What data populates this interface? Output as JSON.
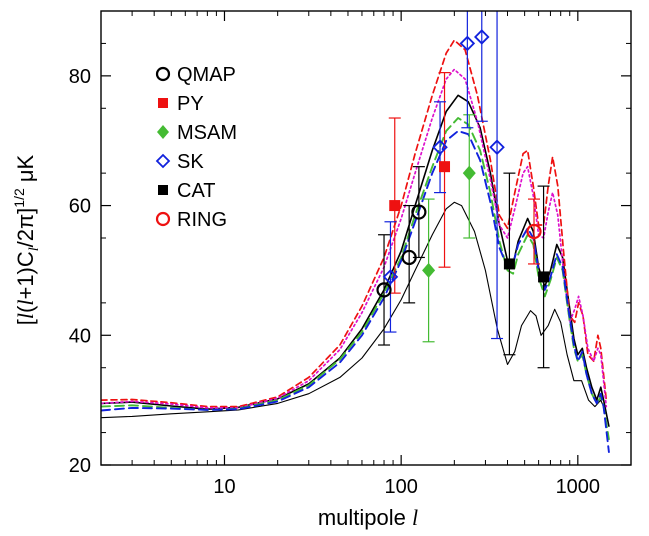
{
  "chart_data": {
    "type": "scatter",
    "xlabel": "multipole",
    "xlabel_symbol": "l",
    "ylabel_unit": "μK",
    "xscale": "log",
    "xlim": [
      2,
      2000
    ],
    "ylim": [
      20,
      90
    ],
    "x_ticks": [
      10,
      100,
      1000
    ],
    "x_tick_labels": [
      "10",
      "100",
      "1000"
    ],
    "y_ticks": [
      20,
      40,
      60,
      80
    ],
    "y_tick_labels": [
      "20",
      "40",
      "60",
      "80"
    ],
    "legend_position": "upper-left",
    "series": [
      {
        "name": "QMAP",
        "color": "#000000",
        "marker": "open-circle",
        "points": [
          {
            "x": 80,
            "y": 47,
            "ylo": 38.5,
            "yhi": 55.5
          },
          {
            "x": 111,
            "y": 52,
            "ylo": 45,
            "yhi": 60
          },
          {
            "x": 126,
            "y": 59,
            "ylo": 52,
            "yhi": 66
          }
        ]
      },
      {
        "name": "PY",
        "color": "#ee1111",
        "marker": "filled-square",
        "points": [
          {
            "x": 92,
            "y": 60,
            "ylo": 46.5,
            "yhi": 73.5
          },
          {
            "x": 176,
            "y": 66,
            "ylo": 50.5,
            "yhi": 80.5
          }
        ]
      },
      {
        "name": "MSAM",
        "color": "#44bb33",
        "marker": "filled-diamond",
        "points": [
          {
            "x": 143,
            "y": 50,
            "ylo": 39,
            "yhi": 61
          },
          {
            "x": 243,
            "y": 65,
            "ylo": 55,
            "yhi": 74
          }
        ]
      },
      {
        "name": "SK",
        "color": "#1122dd",
        "marker": "open-diamond",
        "points": [
          {
            "x": 87,
            "y": 49,
            "ylo": 40.5,
            "yhi": 57.5
          },
          {
            "x": 166,
            "y": 69,
            "ylo": 62,
            "yhi": 76
          },
          {
            "x": 237,
            "y": 85,
            "ylo": 72,
            "yhi": 90
          },
          {
            "x": 286,
            "y": 86,
            "ylo": 73,
            "yhi": 90
          },
          {
            "x": 349,
            "y": 69,
            "ylo": 39.5,
            "yhi": 90
          }
        ]
      },
      {
        "name": "CAT",
        "color": "#000000",
        "marker": "filled-square",
        "points": [
          {
            "x": 410,
            "y": 51,
            "ylo": 37,
            "yhi": 65
          },
          {
            "x": 640,
            "y": 49,
            "ylo": 35,
            "yhi": 63
          }
        ]
      },
      {
        "name": "RING",
        "color": "#ee1111",
        "marker": "open-circle",
        "points": [
          {
            "x": 565,
            "y": 56,
            "ylo": 51,
            "yhi": 61
          }
        ]
      }
    ],
    "curves": [
      {
        "color": "#000000",
        "dash": "",
        "width": 1.6,
        "points": [
          [
            2,
            29.5
          ],
          [
            3,
            29.7
          ],
          [
            5,
            29.1
          ],
          [
            8,
            28.6
          ],
          [
            12,
            28.9
          ],
          [
            20,
            30.2
          ],
          [
            30,
            32.5
          ],
          [
            45,
            36.5
          ],
          [
            60,
            41
          ],
          [
            80,
            47
          ],
          [
            100,
            53
          ],
          [
            120,
            60
          ],
          [
            150,
            68.5
          ],
          [
            180,
            74.5
          ],
          [
            210,
            77
          ],
          [
            240,
            76
          ],
          [
            280,
            72
          ],
          [
            320,
            65
          ],
          [
            360,
            57
          ],
          [
            400,
            51.5
          ],
          [
            430,
            51
          ],
          [
            460,
            54.5
          ],
          [
            520,
            58
          ],
          [
            560,
            56
          ],
          [
            600,
            50.5
          ],
          [
            650,
            47.5
          ],
          [
            700,
            50
          ],
          [
            760,
            54
          ],
          [
            820,
            52
          ],
          [
            880,
            46
          ],
          [
            950,
            39.5
          ],
          [
            1000,
            37
          ],
          [
            1060,
            38
          ],
          [
            1120,
            35
          ],
          [
            1200,
            32
          ],
          [
            1280,
            30
          ],
          [
            1350,
            32
          ],
          [
            1400,
            30
          ],
          [
            1500,
            26
          ]
        ]
      },
      {
        "color": "#000000",
        "dash": "",
        "width": 1.1,
        "points": [
          [
            2,
            27.3
          ],
          [
            3,
            27.5
          ],
          [
            5,
            27.9
          ],
          [
            8,
            28.2
          ],
          [
            12,
            28.5
          ],
          [
            20,
            29.5
          ],
          [
            30,
            31
          ],
          [
            45,
            33.5
          ],
          [
            60,
            36.5
          ],
          [
            80,
            41
          ],
          [
            100,
            45.5
          ],
          [
            120,
            50
          ],
          [
            150,
            55.5
          ],
          [
            180,
            59.5
          ],
          [
            200,
            60.5
          ],
          [
            220,
            60
          ],
          [
            260,
            56
          ],
          [
            300,
            50
          ],
          [
            350,
            41
          ],
          [
            400,
            35.5
          ],
          [
            440,
            37.5
          ],
          [
            480,
            41.5
          ],
          [
            540,
            43.8
          ],
          [
            580,
            43
          ],
          [
            620,
            40
          ],
          [
            680,
            41.5
          ],
          [
            740,
            44
          ],
          [
            800,
            42
          ],
          [
            870,
            37
          ],
          [
            950,
            33
          ],
          [
            1050,
            33
          ],
          [
            1150,
            30
          ],
          [
            1250,
            29
          ],
          [
            1350,
            30
          ],
          [
            1450,
            28
          ]
        ]
      },
      {
        "color": "#ee1111",
        "dash": "6,4",
        "width": 1.7,
        "points": [
          [
            2,
            30
          ],
          [
            3,
            30.1
          ],
          [
            5,
            29.6
          ],
          [
            8,
            29
          ],
          [
            12,
            29
          ],
          [
            20,
            30.5
          ],
          [
            30,
            33.5
          ],
          [
            45,
            38.5
          ],
          [
            60,
            44.5
          ],
          [
            80,
            52
          ],
          [
            100,
            60
          ],
          [
            120,
            68
          ],
          [
            150,
            77
          ],
          [
            180,
            83.5
          ],
          [
            200,
            85.5
          ],
          [
            230,
            84
          ],
          [
            270,
            77
          ],
          [
            320,
            67
          ],
          [
            360,
            58.5
          ],
          [
            400,
            56.5
          ],
          [
            440,
            62
          ],
          [
            490,
            68
          ],
          [
            520,
            68.5
          ],
          [
            560,
            63
          ],
          [
            600,
            57
          ],
          [
            640,
            57
          ],
          [
            680,
            63
          ],
          [
            720,
            67.5
          ],
          [
            770,
            63
          ],
          [
            830,
            53
          ],
          [
            900,
            43
          ],
          [
            960,
            42
          ],
          [
            1010,
            45
          ],
          [
            1070,
            43
          ],
          [
            1140,
            37
          ],
          [
            1230,
            36
          ],
          [
            1300,
            40
          ],
          [
            1350,
            38
          ],
          [
            1450,
            30
          ]
        ]
      },
      {
        "color": "#dd11cc",
        "dash": "2,3",
        "width": 1.7,
        "points": [
          [
            2,
            29.5
          ],
          [
            3,
            29.8
          ],
          [
            5,
            29.4
          ],
          [
            8,
            28.8
          ],
          [
            12,
            28.8
          ],
          [
            20,
            30.3
          ],
          [
            30,
            33
          ],
          [
            45,
            37.8
          ],
          [
            60,
            43.5
          ],
          [
            80,
            50.5
          ],
          [
            100,
            58
          ],
          [
            120,
            65
          ],
          [
            150,
            73.5
          ],
          [
            180,
            79.5
          ],
          [
            200,
            81
          ],
          [
            230,
            79.5
          ],
          [
            270,
            73
          ],
          [
            320,
            64
          ],
          [
            360,
            57
          ],
          [
            400,
            55
          ],
          [
            440,
            59.5
          ],
          [
            490,
            65
          ],
          [
            520,
            66
          ],
          [
            560,
            61.5
          ],
          [
            600,
            55.5
          ],
          [
            640,
            55
          ],
          [
            680,
            59
          ],
          [
            720,
            62
          ],
          [
            770,
            58.5
          ],
          [
            830,
            50
          ],
          [
            900,
            42
          ],
          [
            960,
            44
          ],
          [
            1010,
            46
          ],
          [
            1070,
            43
          ],
          [
            1140,
            38
          ],
          [
            1230,
            36
          ],
          [
            1300,
            38
          ],
          [
            1350,
            37
          ],
          [
            1450,
            29
          ]
        ]
      },
      {
        "color": "#44bb33",
        "dash": "9,5",
        "width": 1.9,
        "points": [
          [
            2,
            29
          ],
          [
            3,
            29.2
          ],
          [
            5,
            28.8
          ],
          [
            8,
            28.5
          ],
          [
            12,
            28.7
          ],
          [
            20,
            30
          ],
          [
            30,
            32.3
          ],
          [
            45,
            36.3
          ],
          [
            60,
            40.5
          ],
          [
            80,
            46.5
          ],
          [
            100,
            52
          ],
          [
            120,
            58.5
          ],
          [
            150,
            66
          ],
          [
            180,
            71.5
          ],
          [
            210,
            73.5
          ],
          [
            240,
            72.5
          ],
          [
            280,
            68.5
          ],
          [
            320,
            62
          ],
          [
            360,
            54.5
          ],
          [
            400,
            50
          ],
          [
            430,
            49.5
          ],
          [
            460,
            52.5
          ],
          [
            520,
            55.5
          ],
          [
            560,
            54
          ],
          [
            600,
            49
          ],
          [
            650,
            46
          ],
          [
            700,
            48.5
          ],
          [
            760,
            52
          ],
          [
            820,
            50
          ],
          [
            880,
            44
          ],
          [
            950,
            38
          ],
          [
            1000,
            36
          ],
          [
            1060,
            37
          ],
          [
            1120,
            34
          ],
          [
            1200,
            31
          ],
          [
            1280,
            29.5
          ],
          [
            1350,
            30.5
          ],
          [
            1400,
            29
          ],
          [
            1500,
            24
          ]
        ]
      },
      {
        "color": "#1122dd",
        "dash": "9,5",
        "width": 1.9,
        "points": [
          [
            2,
            28.4
          ],
          [
            3,
            28.8
          ],
          [
            5,
            28.7
          ],
          [
            8,
            28.5
          ],
          [
            12,
            28.6
          ],
          [
            20,
            29.8
          ],
          [
            30,
            32
          ],
          [
            45,
            35.8
          ],
          [
            60,
            40
          ],
          [
            80,
            45.8
          ],
          [
            100,
            51.5
          ],
          [
            120,
            57.5
          ],
          [
            150,
            65
          ],
          [
            180,
            70
          ],
          [
            210,
            71.5
          ],
          [
            240,
            71
          ],
          [
            280,
            67
          ],
          [
            320,
            60.5
          ],
          [
            360,
            53.5
          ],
          [
            400,
            50.5
          ],
          [
            430,
            51
          ],
          [
            460,
            54
          ],
          [
            520,
            56.5
          ],
          [
            560,
            55
          ],
          [
            600,
            50
          ],
          [
            650,
            47
          ],
          [
            700,
            49
          ],
          [
            760,
            52.5
          ],
          [
            820,
            50.5
          ],
          [
            880,
            44.5
          ],
          [
            950,
            38.5
          ],
          [
            1000,
            36
          ],
          [
            1060,
            37.5
          ],
          [
            1120,
            34
          ],
          [
            1200,
            31
          ],
          [
            1280,
            29.5
          ],
          [
            1350,
            31
          ],
          [
            1400,
            29
          ],
          [
            1500,
            22
          ]
        ]
      }
    ]
  }
}
